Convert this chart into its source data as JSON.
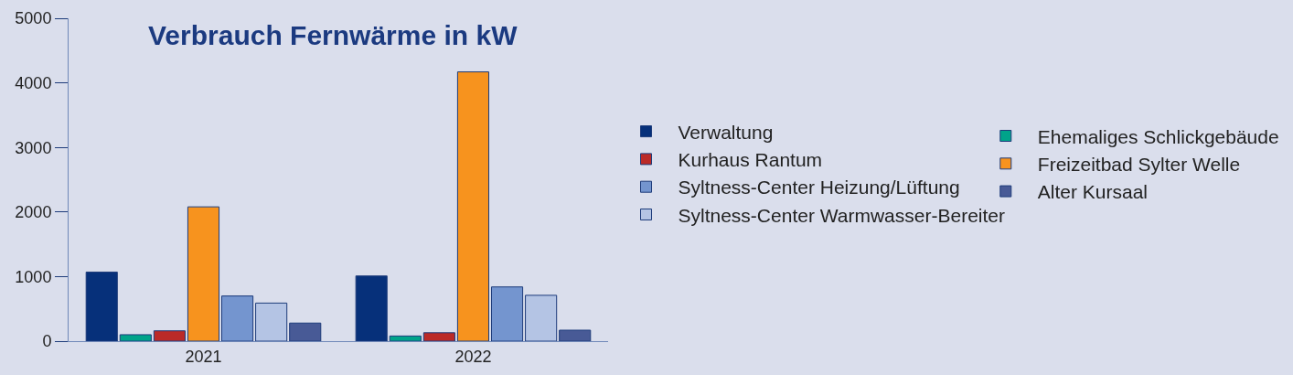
{
  "chart_data": {
    "type": "bar",
    "title": "Verbrauch Fernwärme in kW",
    "categories": [
      "2021",
      "2022"
    ],
    "series": [
      {
        "name": "Verwaltung",
        "color": "#06307a",
        "values": [
          1070,
          1010
        ]
      },
      {
        "name": "Ehemaliges Schlickgebäude",
        "color": "#00a38a",
        "values": [
          100,
          80
        ]
      },
      {
        "name": "Kurhaus Rantum",
        "color": "#bb2a27",
        "values": [
          160,
          130
        ]
      },
      {
        "name": "Freizeitbad Sylter Welle",
        "color": "#f7931e",
        "values": [
          2080,
          4170
        ]
      },
      {
        "name": "Syltness-Center Heizung/Lüftung",
        "color": "#7495cf",
        "values": [
          700,
          840
        ]
      },
      {
        "name": "Syltness-Center Warmwasser-Bereiter",
        "color": "#b4c4e4",
        "values": [
          590,
          710
        ]
      },
      {
        "name": "Alter Kursaal",
        "color": "#485a96",
        "values": [
          280,
          170
        ]
      }
    ],
    "ylim": [
      0,
      5000
    ],
    "yticks": [
      0,
      1000,
      2000,
      3000,
      4000,
      5000
    ],
    "grid": false,
    "legend": "right"
  }
}
